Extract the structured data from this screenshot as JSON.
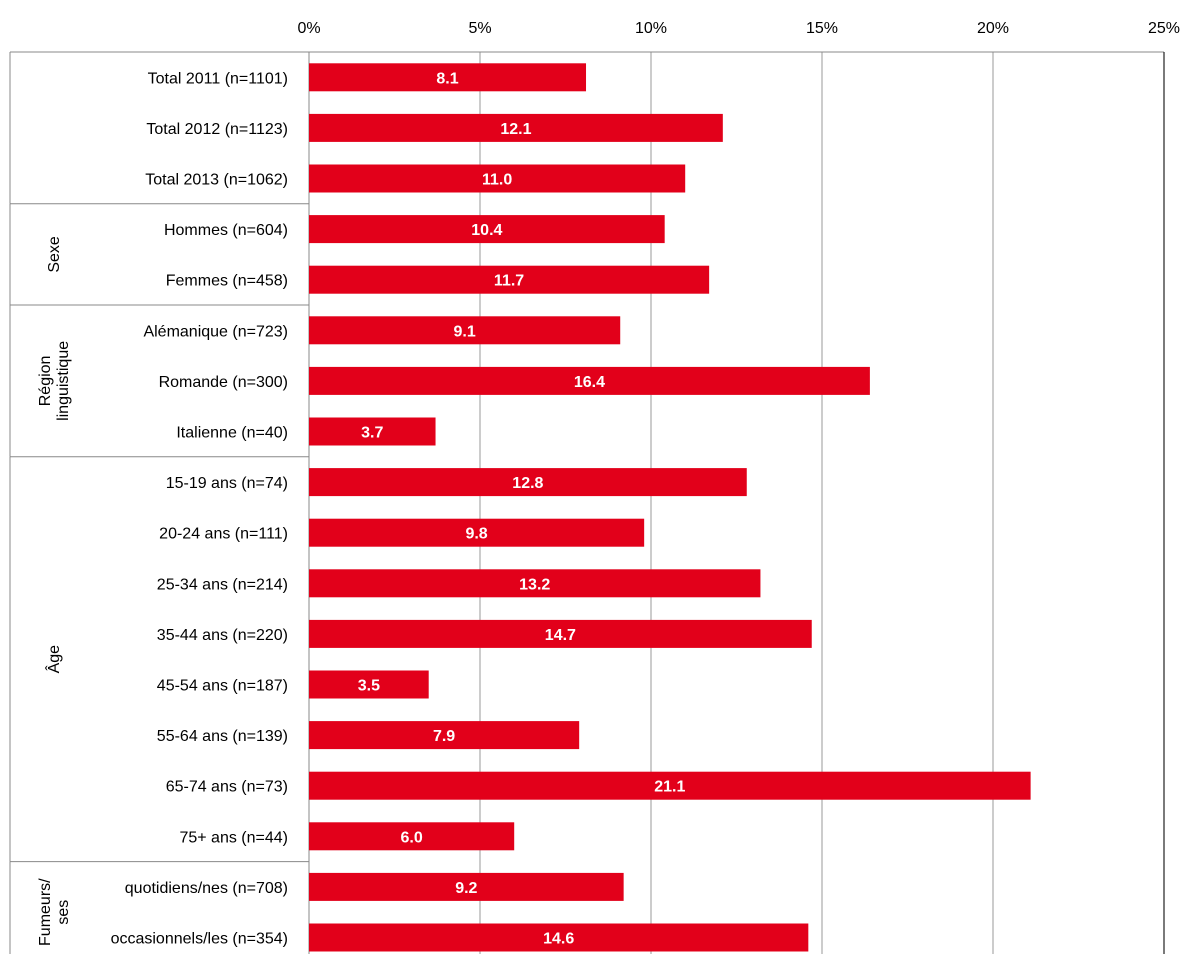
{
  "chart_data": {
    "type": "bar",
    "orientation": "horizontal",
    "categories": [
      "Total 2011 (n=1101)",
      "Total 2012 (n=1123)",
      "Total 2013 (n=1062)",
      "Hommes (n=604)",
      "Femmes (n=458)",
      "Alémanique (n=723)",
      "Romande (n=300)",
      "Italienne (n=40)",
      "15-19 ans (n=74)",
      "20-24 ans (n=111)",
      "25-34 ans (n=214)",
      "35-44 ans (n=220)",
      "45-54 ans (n=187)",
      "55-64 ans (n=139)",
      "65-74 ans (n=73)",
      "75+ ans (n=44)",
      "quotidiens/nes (n=708)",
      "occasionnels/les (n=354)"
    ],
    "values": [
      8.1,
      12.1,
      11.0,
      10.4,
      11.7,
      9.1,
      16.4,
      3.7,
      12.8,
      9.8,
      13.2,
      14.7,
      3.5,
      7.9,
      21.1,
      6.0,
      9.2,
      14.6
    ],
    "data_labels": [
      "8.1",
      "12.1",
      "11.0",
      "10.4",
      "11.7",
      "9.1",
      "16.4",
      "3.7",
      "12.8",
      "9.8",
      "13.2",
      "14.7",
      "3.5",
      "7.9",
      "21.1",
      "6.0",
      "9.2",
      "14.6"
    ],
    "groups": [
      {
        "label": "",
        "start": 0,
        "end": 2
      },
      {
        "label": "Sexe",
        "start": 3,
        "end": 4
      },
      {
        "label": "Région linguistique",
        "lines": [
          "Région",
          "linguistique"
        ],
        "start": 5,
        "end": 7
      },
      {
        "label": "Âge",
        "start": 8,
        "end": 15
      },
      {
        "label": "Fumeurs/ ses",
        "lines": [
          "Fumeurs/",
          "ses"
        ],
        "start": 16,
        "end": 17
      }
    ],
    "xlim": [
      0,
      25
    ],
    "xticks": [
      0,
      5,
      10,
      15,
      20,
      25
    ],
    "xtick_labels": [
      "0%",
      "5%",
      "10%",
      "15%",
      "20%",
      "25%"
    ],
    "xaxis_position": "top",
    "grid": "vertical",
    "bar_color": "#e2001a",
    "legend": "none"
  }
}
